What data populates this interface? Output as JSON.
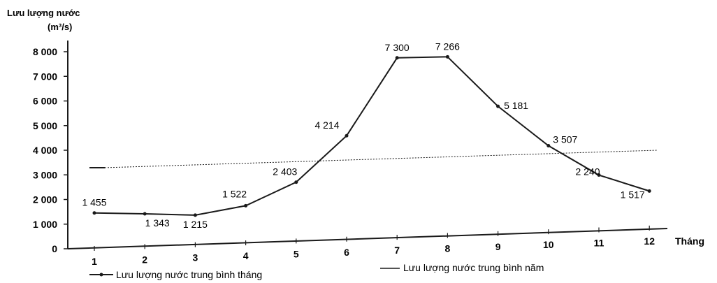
{
  "chart_data": {
    "type": "line",
    "ylabel_line1": "Lưu lượng nước",
    "ylabel_line2": "(m³/s)",
    "xlabel": "Tháng",
    "categories": [
      "1",
      "2",
      "3",
      "4",
      "5",
      "6",
      "7",
      "8",
      "9",
      "10",
      "11",
      "12"
    ],
    "y_ticks": [
      "0",
      "1 000",
      "2 000",
      "3 000",
      "4 000",
      "5 000",
      "6 000",
      "7 000",
      "8 000"
    ],
    "ylim": [
      0,
      8000
    ],
    "series": [
      {
        "name": "Lưu lượng nước trung bình tháng",
        "values": [
          1455,
          1343,
          1215,
          1522,
          2403,
          4214,
          7300,
          7266,
          5181,
          3507,
          2240,
          1517
        ],
        "labels": [
          "1 455",
          "1 343",
          "1 215",
          "1 522",
          "2 403",
          "4 214",
          "7 300",
          "7 266",
          "5 181",
          "3 507",
          "2 240",
          "1 517"
        ],
        "color": "#1a1a1a"
      }
    ],
    "average": {
      "name": "Lưu lượng nước trung bình năm",
      "color": "#1a1a1a"
    },
    "legend_position": "bottom"
  }
}
